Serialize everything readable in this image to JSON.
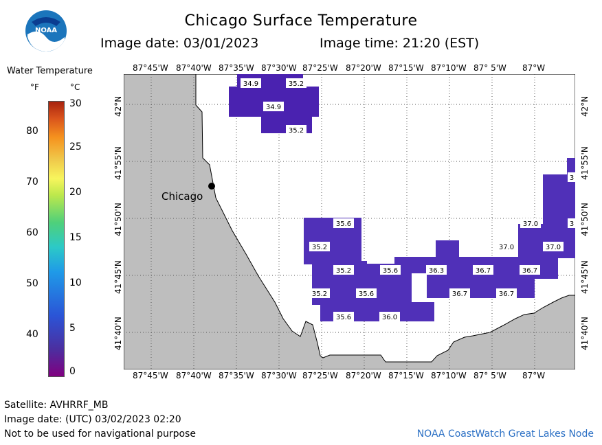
{
  "header": {
    "title": "Chicago Surface Temperature",
    "image_date": "Image date: 03/01/2023",
    "image_time": "Image time: 21:20 (EST)"
  },
  "logo": {
    "text": "NOAA"
  },
  "legend": {
    "title": "Water Temperature",
    "unit_f": "°F",
    "unit_c": "°C",
    "fahrenheit_ticks": [
      "80",
      "70",
      "60",
      "50",
      "40"
    ],
    "celsius_ticks": [
      "30",
      "25",
      "20",
      "15",
      "10",
      "5",
      "0"
    ]
  },
  "axes": {
    "longitudes": [
      "87°45'W",
      "87°40'W",
      "87°35'W",
      "87°30'W",
      "87°25'W",
      "87°20'W",
      "87°15'W",
      "87°10'W",
      "87° 5'W",
      "87°W"
    ],
    "latitudes": [
      "42°N",
      "41°55'N",
      "41°50'N",
      "41°45'N",
      "41°40'N"
    ]
  },
  "map": {
    "city_label": "Chicago",
    "colors": {
      "land": "#bebebe",
      "water": "#ffffff",
      "temp_cells": "#5233b8",
      "temp_cells_dark": "#4a22b0",
      "label_bg": "#ffffff"
    },
    "temperature_labels": [
      "34.9",
      "35.2",
      "34.9",
      "35.2",
      "35.6",
      "35.2",
      "35.2",
      "35.6",
      "36.3",
      "36.7",
      "36.7",
      "35.2",
      "35.6",
      "36.7",
      "36.7",
      "35.6",
      "36.0",
      "37.0",
      "37.0",
      "37.0",
      "3",
      "3"
    ]
  },
  "footer": {
    "satellite": "Satellite: AVHRRF_MB",
    "utc_date": "Image date: (UTC) 03/02/2023  02:20",
    "disclaimer": "Not to be used for navigational purpose",
    "credit": "NOAA CoastWatch Great Lakes Node"
  }
}
